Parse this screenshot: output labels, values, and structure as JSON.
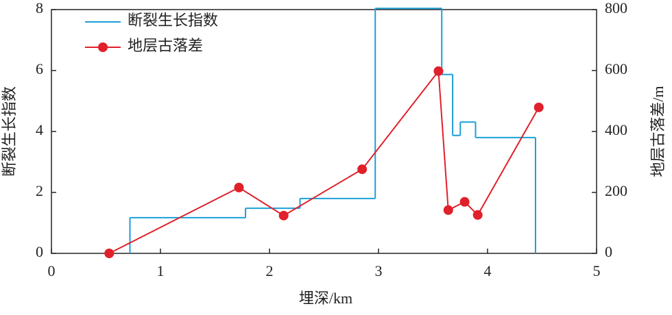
{
  "chart_data": {
    "type": "line",
    "xlabel": "埋深/km",
    "ylabel": "断裂生长指数",
    "y2label": "地层古落差/m",
    "xlim": [
      0,
      5
    ],
    "xticks": [
      0,
      1,
      2,
      3,
      4,
      5
    ],
    "ylim": [
      0,
      8
    ],
    "yticks": [
      0,
      2,
      4,
      6,
      8
    ],
    "y2lim": [
      0,
      800
    ],
    "y2ticks": [
      0,
      200,
      400,
      600,
      800
    ],
    "series": [
      {
        "name": "断裂生长指数",
        "color": "#1a9fd8",
        "style": "step",
        "bins": [
          0.72,
          1.78,
          2.28,
          2.97,
          3.58,
          3.68,
          3.75,
          3.89,
          4.44
        ],
        "values": [
          1.17,
          1.48,
          1.8,
          8.04,
          5.87,
          3.87,
          4.31,
          3.8
        ]
      },
      {
        "name": "地层古落差",
        "color": "#e0202a",
        "axis": "y2",
        "style": "marker-line",
        "x": [
          0.53,
          1.72,
          2.13,
          2.85,
          3.55,
          3.64,
          3.79,
          3.91,
          4.47
        ],
        "values": [
          0,
          216,
          124,
          276,
          598,
          142,
          169,
          126,
          479
        ]
      }
    ]
  }
}
